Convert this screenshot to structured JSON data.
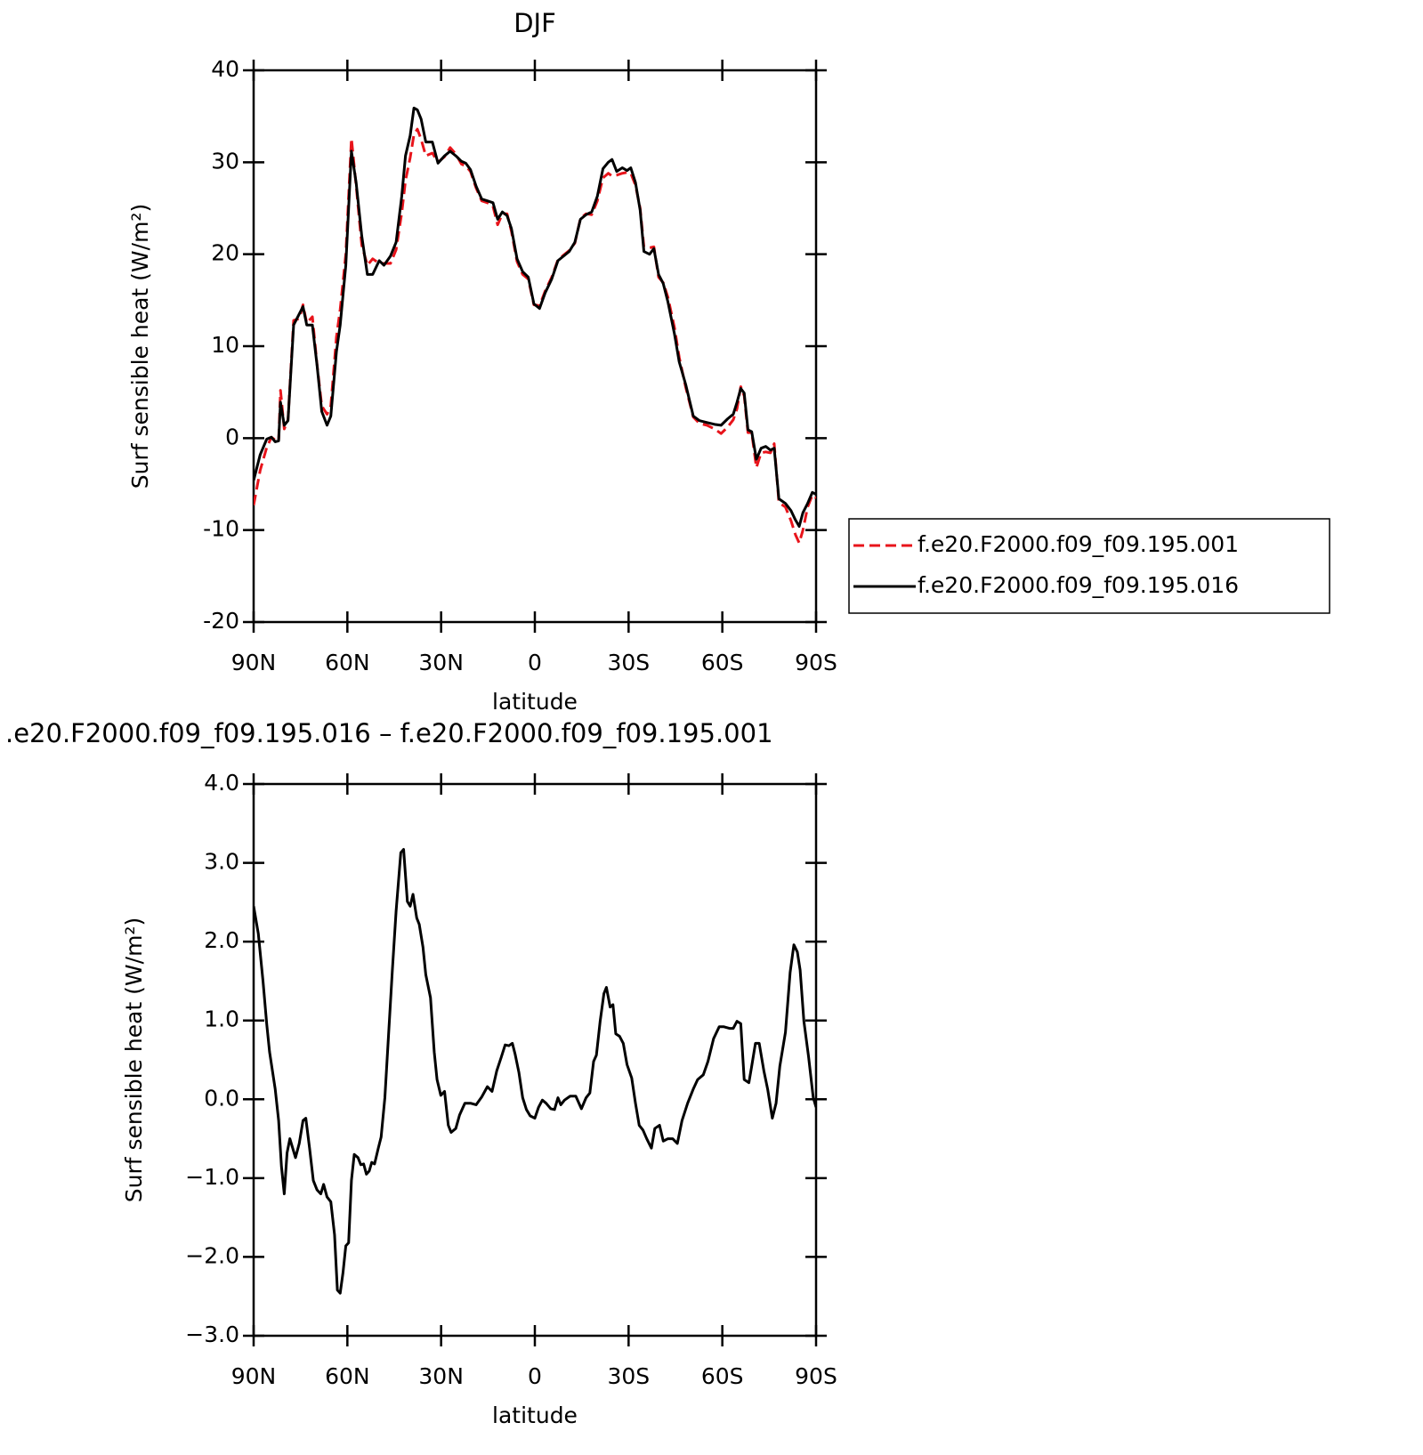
{
  "chart_data": [
    {
      "type": "line",
      "title": "DJF",
      "xlabel": "latitude",
      "ylabel": "Surf sensible heat (W/m²)",
      "xlim": [
        90,
        -90
      ],
      "ylim": [
        -20,
        40
      ],
      "xticks": [
        {
          "value": 90,
          "label": "90N"
        },
        {
          "value": 60,
          "label": "60N"
        },
        {
          "value": 30,
          "label": "30N"
        },
        0,
        {
          "value": -30,
          "label": "30S"
        },
        {
          "value": -60,
          "label": "60S"
        },
        {
          "value": -90,
          "label": "90S"
        }
      ],
      "yticks": [
        -20,
        -10,
        0,
        10,
        20,
        30,
        40
      ],
      "legend": "right",
      "x": [
        90,
        87.9,
        85.8,
        84.3,
        83.1,
        82,
        81.4,
        80.2,
        79,
        77.2,
        75.4,
        74.2,
        73,
        71.2,
        69.7,
        68.2,
        66.5,
        65.3,
        63.5,
        62.3,
        60.5,
        58.7,
        57.2,
        55.4,
        53.6,
        51.9,
        49.8,
        48.3,
        46.2,
        44.4,
        42.6,
        41.4,
        39.9,
        38.7,
        37.6,
        36.4,
        34.9,
        32.8,
        31,
        28.9,
        27.1,
        25.3,
        23.5,
        22.1,
        20.6,
        18.8,
        17,
        15.2,
        13.4,
        11.9,
        10.4,
        8.9,
        7.5,
        5.7,
        3.9,
        2.1,
        0.3,
        -1.5,
        -3.3,
        -5.4,
        -7.4,
        -9.2,
        -11,
        -12.8,
        -14.6,
        -16.4,
        -18.2,
        -20,
        -21.8,
        -23.5,
        -24.7,
        -26.2,
        -28,
        -29.5,
        -30.7,
        -32.2,
        -33.7,
        -34.9,
        -36.7,
        -38.1,
        -39.6,
        -41.1,
        -42.6,
        -44.7,
        -46.2,
        -48.3,
        -50.7,
        -52.7,
        -55.1,
        -57.5,
        -59.6,
        -61.7,
        -63.5,
        -64.7,
        -65.9,
        -67,
        -68.2,
        -69.4,
        -70.9,
        -72.4,
        -73.9,
        -75.4,
        -76.6,
        -78.1,
        -80.2,
        -82,
        -83.4,
        -84.6,
        -85.8,
        -87.3,
        -88.8,
        -90
      ],
      "series": [
        {
          "name": "f.e20.F2000.f09_f09.195.001",
          "color": "#e8141b",
          "style": "dashed",
          "values": [
            -7.3,
            -3.5,
            -1.0,
            0.1,
            -0.2,
            -0.3,
            5.2,
            1.0,
            2.0,
            12.8,
            13.0,
            14.5,
            12.5,
            13.2,
            8.0,
            3.5,
            2.6,
            3.5,
            11.0,
            14.0,
            20.0,
            32.6,
            27.5,
            21.0,
            18.8,
            19.5,
            19.0,
            19.0,
            19.0,
            20.5,
            24.5,
            28.0,
            30.5,
            33.0,
            33.6,
            32.5,
            30.7,
            31.0,
            30.0,
            30.6,
            31.6,
            30.9,
            29.8,
            29.6,
            29.0,
            27.2,
            25.8,
            25.6,
            25.2,
            23.2,
            24.4,
            24.4,
            22.5,
            19.2,
            17.8,
            17.3,
            14.5,
            14.4,
            16.0,
            17.5,
            19.4,
            19.9,
            20.4,
            21.2,
            23.9,
            24.4,
            24.3,
            25.8,
            28.3,
            28.8,
            28.5,
            28.6,
            28.8,
            28.9,
            28.8,
            27.5,
            25.0,
            20.8,
            20.7,
            20.8,
            17.5,
            16.9,
            15.3,
            12.0,
            8.8,
            5.5,
            2.3,
            1.6,
            1.4,
            1.0,
            0.5,
            1.2,
            2.0,
            3.2,
            5.6,
            4.6,
            0.6,
            0.6,
            -3.2,
            -1.6,
            -1.5,
            -1.6,
            -0.6,
            -7.0,
            -7.5,
            -9.0,
            -10.5,
            -11.4,
            -10.0,
            -7.5,
            -6.2,
            -6.5
          ]
        },
        {
          "name": "f.e20.F2000.f09_f09.195.016",
          "color": "#000000",
          "style": "solid",
          "values": [
            -4.6,
            -1.8,
            -0.1,
            0.1,
            -0.4,
            -0.3,
            3.9,
            1.4,
            1.9,
            12.3,
            13.5,
            14.3,
            12.3,
            12.3,
            7.9,
            2.9,
            1.4,
            2.4,
            9.4,
            12.3,
            18.8,
            31.2,
            27.8,
            22.0,
            17.8,
            17.8,
            19.3,
            18.8,
            19.8,
            21.3,
            26.3,
            30.7,
            32.9,
            35.9,
            35.7,
            34.7,
            32.2,
            32.2,
            29.9,
            30.7,
            31.2,
            30.7,
            30.1,
            29.9,
            29.2,
            27.4,
            26.0,
            25.8,
            25.6,
            23.8,
            24.6,
            24.2,
            22.8,
            19.5,
            18.1,
            17.5,
            14.6,
            14.1,
            15.8,
            17.3,
            19.3,
            19.8,
            20.3,
            21.3,
            23.8,
            24.3,
            24.6,
            26.3,
            29.3,
            30.0,
            30.3,
            29.0,
            29.4,
            29.1,
            29.4,
            27.8,
            24.8,
            20.3,
            20.0,
            20.6,
            17.8,
            16.8,
            14.8,
            11.3,
            8.3,
            5.8,
            2.4,
            1.9,
            1.7,
            1.5,
            1.4,
            2.1,
            2.6,
            3.9,
            5.4,
            4.9,
            0.9,
            0.7,
            -2.3,
            -1.1,
            -0.9,
            -1.3,
            -1.1,
            -6.6,
            -7.1,
            -7.9,
            -8.9,
            -9.6,
            -8.1,
            -7.1,
            -5.9,
            -6.1
          ]
        }
      ]
    },
    {
      "type": "line",
      "title": ".e20.F2000.f09_f09.195.016 – f.e20.F2000.f09_f09.195.001",
      "xlabel": "latitude",
      "ylabel": "Surf sensible heat (W/m²)",
      "xlim": [
        90,
        -90
      ],
      "ylim": [
        -3,
        4
      ],
      "xticks": [
        {
          "value": 90,
          "label": "90N"
        },
        {
          "value": 60,
          "label": "60N"
        },
        {
          "value": 30,
          "label": "30N"
        },
        0,
        {
          "value": -30,
          "label": "30S"
        },
        {
          "value": -60,
          "label": "60S"
        },
        {
          "value": -90,
          "label": "90S"
        }
      ],
      "yticks": [
        {
          "value": -3,
          "label": "−3.0"
        },
        {
          "value": -2,
          "label": "−2.0"
        },
        {
          "value": -1,
          "label": "−1.0"
        },
        {
          "value": 0,
          "label": "0.0"
        },
        {
          "value": 1,
          "label": "1.0"
        },
        {
          "value": 2,
          "label": "2.0"
        },
        {
          "value": 3,
          "label": "3.0"
        },
        {
          "value": 4,
          "label": "4.0"
        }
      ],
      "x": [
        90,
        88.5,
        87,
        85.8,
        84.9,
        83.1,
        82,
        81.1,
        80.2,
        79.3,
        78.4,
        76.6,
        75.4,
        74.2,
        73.3,
        72.1,
        70.9,
        69.7,
        68.5,
        67.6,
        66.5,
        65.3,
        64.1,
        63.2,
        62.3,
        61.4,
        60.5,
        59.6,
        58.7,
        57.8,
        56.6,
        55.7,
        54.8,
        53.9,
        53.0,
        52.2,
        51.3,
        50.1,
        49.2,
        48.0,
        46.8,
        45.6,
        44.4,
        42.9,
        42.0,
        40.8,
        39.9,
        39.0,
        37.8,
        37.0,
        35.8,
        34.9,
        33.4,
        32.2,
        31.3,
        30.1,
        28.9,
        27.7,
        26.8,
        25.3,
        24.1,
        22.4,
        20.6,
        18.8,
        17.0,
        15.2,
        13.7,
        12.2,
        10.7,
        9.5,
        8.3,
        7.2,
        6.3,
        5.1,
        3.9,
        2.7,
        1.5,
        0.0,
        -1.2,
        -2.4,
        -3.6,
        -5.1,
        -6.3,
        -7.4,
        -8.3,
        -9.5,
        -11.3,
        -13.1,
        -14.9,
        -16.4,
        -17.6,
        -18.8,
        -19.7,
        -20.9,
        -22.1,
        -22.9,
        -24.1,
        -25.0,
        -25.9,
        -27.1,
        -28.3,
        -29.5,
        -31.0,
        -32.2,
        -33.4,
        -34.6,
        -35.8,
        -37.3,
        -38.4,
        -39.9,
        -41.1,
        -42.6,
        -44.1,
        -45.6,
        -47.1,
        -48.9,
        -50.7,
        -52.1,
        -53.9,
        -55.4,
        -57.2,
        -59.0,
        -60.5,
        -62.3,
        -63.5,
        -64.7,
        -65.9,
        -67.0,
        -68.5,
        -69.4,
        -70.6,
        -71.8,
        -73.3,
        -74.5,
        -76.0,
        -77.2,
        -78.4,
        -80.2,
        -81.7,
        -82.9,
        -84.0,
        -84.9,
        -86.1,
        -87.6,
        -89.1,
        -90.0
      ],
      "series": [
        {
          "color": "#000000",
          "style": "solid",
          "values": [
            2.45,
            2.1,
            1.5,
            0.95,
            0.6,
            0.13,
            -0.27,
            -0.85,
            -1.2,
            -0.68,
            -0.5,
            -0.74,
            -0.56,
            -0.27,
            -0.24,
            -0.62,
            -1.03,
            -1.15,
            -1.2,
            -1.08,
            -1.24,
            -1.3,
            -1.72,
            -2.42,
            -2.46,
            -2.2,
            -1.86,
            -1.82,
            -1.03,
            -0.7,
            -0.74,
            -0.83,
            -0.82,
            -0.95,
            -0.91,
            -0.8,
            -0.82,
            -0.62,
            -0.48,
            0.02,
            0.83,
            1.64,
            2.39,
            3.13,
            3.17,
            2.51,
            2.45,
            2.6,
            2.3,
            2.22,
            1.93,
            1.58,
            1.29,
            0.6,
            0.25,
            0.05,
            0.1,
            -0.33,
            -0.42,
            -0.37,
            -0.2,
            -0.05,
            -0.05,
            -0.07,
            0.03,
            0.16,
            0.1,
            0.36,
            0.54,
            0.69,
            0.68,
            0.71,
            0.57,
            0.34,
            0.02,
            -0.13,
            -0.21,
            -0.24,
            -0.1,
            -0.01,
            -0.05,
            -0.12,
            -0.13,
            0.02,
            -0.07,
            -0.01,
            0.04,
            0.04,
            -0.12,
            0.02,
            0.08,
            0.48,
            0.56,
            0.99,
            1.34,
            1.42,
            1.17,
            1.2,
            0.83,
            0.8,
            0.71,
            0.44,
            0.27,
            -0.05,
            -0.33,
            -0.39,
            -0.5,
            -0.62,
            -0.37,
            -0.33,
            -0.53,
            -0.5,
            -0.5,
            -0.56,
            -0.27,
            -0.05,
            0.13,
            0.25,
            0.31,
            0.48,
            0.77,
            0.92,
            0.92,
            0.9,
            0.9,
            0.99,
            0.96,
            0.25,
            0.21,
            0.42,
            0.71,
            0.71,
            0.36,
            0.13,
            -0.24,
            -0.05,
            0.42,
            0.85,
            1.61,
            1.96,
            1.87,
            1.64,
            0.99,
            0.54,
            0.02,
            -0.1
          ]
        }
      ]
    }
  ]
}
